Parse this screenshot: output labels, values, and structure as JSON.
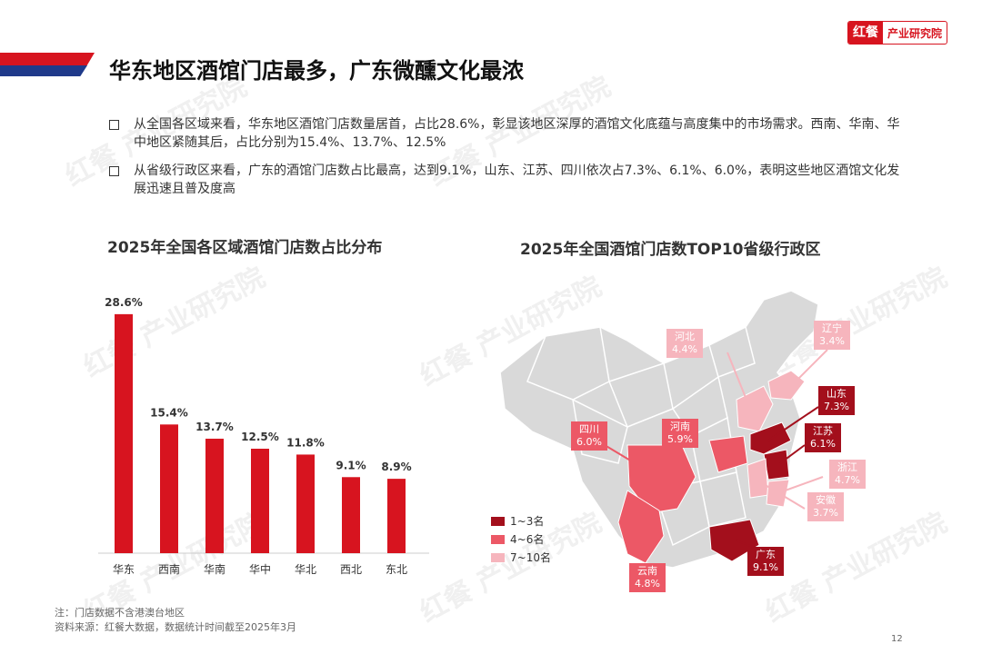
{
  "logo": {
    "mark": "红餐",
    "text": "产业研究院"
  },
  "page_title": "华东地区酒馆门店最多，广东微醺文化最浓",
  "bullets": [
    "从全国各区域来看，华东地区酒馆门店数量居首，占比28.6%，彰显该地区深厚的酒馆文化底蕴与高度集中的市场需求。西南、华南、华中地区紧随其后，占比分别为15.4%、13.7%、12.5%",
    "从省级行政区来看，广东的酒馆门店数占比最高，达到9.1%，山东、江苏、四川依次占7.3%、6.1%、6.0%，表明这些地区酒馆文化发展迅速且普及度高"
  ],
  "watermark": "红餐 产业研究院",
  "chart_data": [
    {
      "type": "bar",
      "title": "2025年全国各区域酒馆门店数占比分布",
      "categories": [
        "华东",
        "西南",
        "华南",
        "华中",
        "华北",
        "西北",
        "东北"
      ],
      "values": [
        28.6,
        15.4,
        13.7,
        12.5,
        11.8,
        9.1,
        8.9
      ],
      "data_labels": [
        "28.6%",
        "15.4%",
        "13.7%",
        "12.5%",
        "11.8%",
        "9.1%",
        "8.9%"
      ],
      "ylim": [
        0,
        30
      ],
      "grid": false,
      "color": "#d7141f"
    },
    {
      "type": "map",
      "title": "2025年全国酒馆门店数TOP10省级行政区",
      "legend": [
        {
          "label": "1~3名",
          "color": "#a30f1c"
        },
        {
          "label": "4~6名",
          "color": "#ec5866"
        },
        {
          "label": "7~10名",
          "color": "#f6b5bd"
        }
      ],
      "legend_position": "bottom-left",
      "regions": [
        {
          "name": "广东",
          "value": "9.1%",
          "tier": 1
        },
        {
          "name": "山东",
          "value": "7.3%",
          "tier": 1
        },
        {
          "name": "江苏",
          "value": "6.1%",
          "tier": 1
        },
        {
          "name": "四川",
          "value": "6.0%",
          "tier": 2
        },
        {
          "name": "河南",
          "value": "5.9%",
          "tier": 2
        },
        {
          "name": "云南",
          "value": "4.8%",
          "tier": 2
        },
        {
          "name": "浙江",
          "value": "4.7%",
          "tier": 3
        },
        {
          "name": "河北",
          "value": "4.4%",
          "tier": 3
        },
        {
          "name": "安徽",
          "value": "3.7%",
          "tier": 3
        },
        {
          "name": "辽宁",
          "value": "3.4%",
          "tier": 3
        }
      ]
    }
  ],
  "footnote": {
    "note": "注：门店数据不含港澳台地区",
    "source": "资料来源：红餐大数据，数据统计时间截至2025年3月"
  },
  "page_number": "12"
}
